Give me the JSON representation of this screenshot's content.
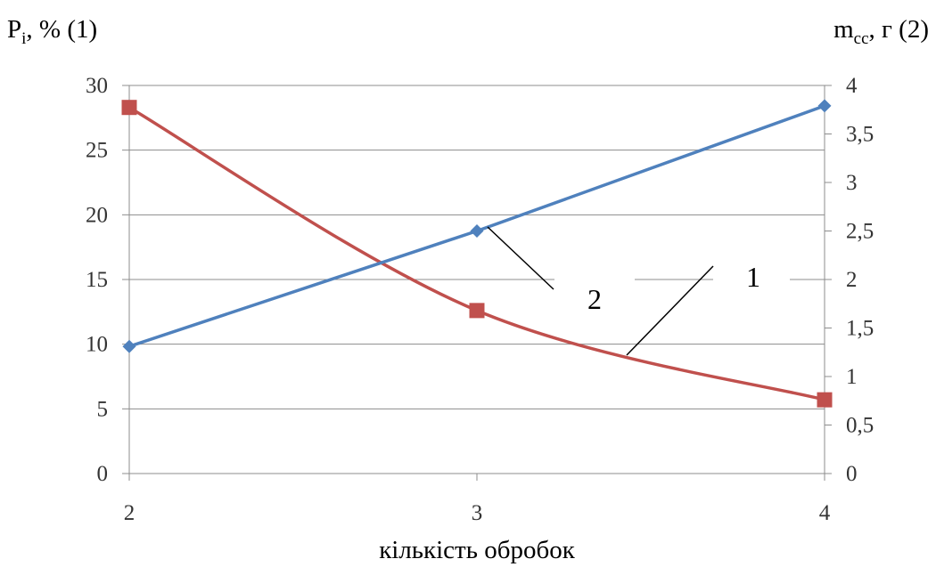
{
  "chart_data": {
    "type": "line",
    "x_axis": {
      "label": "кількість обробок",
      "ticks": [
        "2",
        "3",
        "4"
      ],
      "values": [
        2,
        3,
        4
      ]
    },
    "y_left": {
      "label_main": "P",
      "label_sub": "i",
      "label_rest": ", % (1)",
      "min": 0,
      "max": 30,
      "step": 5,
      "ticks": [
        "0",
        "5",
        "10",
        "15",
        "20",
        "25",
        "30"
      ]
    },
    "y_right": {
      "label_main": "m",
      "label_sub": "cc",
      "label_rest": ", г (2)",
      "min": 0,
      "max": 4,
      "step": 0.5,
      "ticks": [
        "0",
        "0,5",
        "1",
        "1,5",
        "2",
        "2,5",
        "3",
        "3,5",
        "4"
      ]
    },
    "series": [
      {
        "id": "1",
        "axis": "left",
        "color": "#c0504d",
        "marker": "square",
        "x": [
          2,
          3,
          4
        ],
        "y": [
          28.3,
          12.6,
          5.7
        ]
      },
      {
        "id": "2",
        "axis": "right",
        "color": "#4f81bd",
        "marker": "diamond",
        "x": [
          2,
          3,
          4
        ],
        "y": [
          1.31,
          2.5,
          3.79
        ]
      }
    ],
    "callouts": [
      "1",
      "2"
    ],
    "grid": {
      "horizontal": true,
      "vertical": false
    }
  }
}
